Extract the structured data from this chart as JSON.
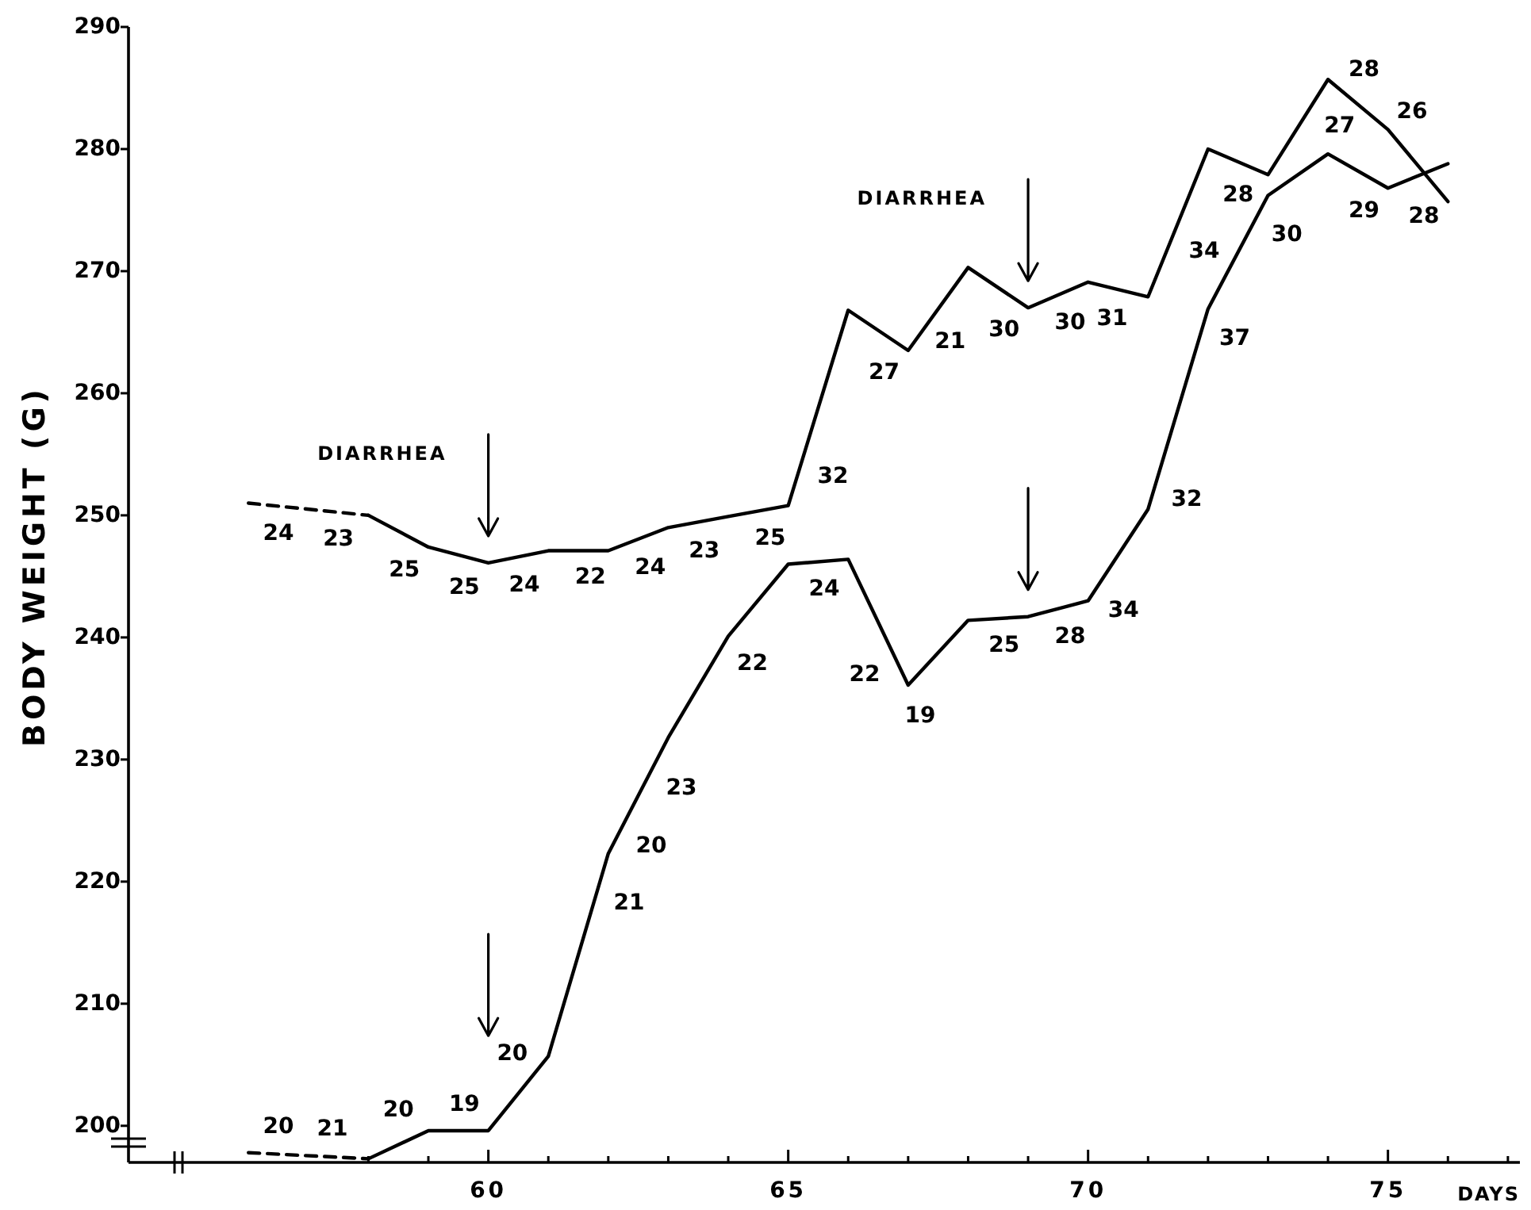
{
  "chart_data": {
    "type": "line",
    "ylabel": "BODY WEIGHT (G)",
    "xlabel": "DAYS",
    "xlim": [
      54,
      77.2
    ],
    "xticks": [
      {
        "value": 58,
        "label": null
      },
      {
        "value": 59,
        "label": null
      },
      60,
      {
        "value": 61,
        "label": null
      },
      {
        "value": 62,
        "label": null
      },
      {
        "value": 63,
        "label": null
      },
      {
        "value": 64,
        "label": null
      },
      65,
      {
        "value": 66,
        "label": null
      },
      {
        "value": 67,
        "label": null
      },
      {
        "value": 68,
        "label": null
      },
      {
        "value": 69,
        "label": null
      },
      70,
      {
        "value": 71,
        "label": null
      },
      {
        "value": 72,
        "label": null
      },
      {
        "value": 73,
        "label": null
      },
      {
        "value": 74,
        "label": null
      },
      75,
      {
        "value": 76,
        "label": null
      },
      {
        "value": 77,
        "label": null
      }
    ],
    "ylim": [
      197,
      290
    ],
    "yticks": [
      200,
      210,
      220,
      230,
      240,
      250,
      260,
      270,
      280,
      290
    ],
    "series": [
      {
        "color": "#000000",
        "line_style": "dashed",
        "x": [
          56,
          58
        ],
        "values": [
          251.0,
          250.0
        ]
      },
      {
        "color": "#000000",
        "line_style": "solid",
        "x": [
          58,
          59,
          60,
          61,
          62,
          63,
          64,
          65,
          66,
          67,
          68,
          69,
          70,
          71,
          72,
          73,
          74,
          75,
          76
        ],
        "values": [
          250.0,
          247.4,
          246.1,
          247.1,
          247.1,
          249.0,
          249.9,
          250.8,
          266.8,
          263.5,
          270.3,
          267.0,
          269.1,
          267.9,
          280.0,
          277.9,
          285.7,
          281.6,
          275.7
        ]
      },
      {
        "color": "#000000",
        "line_style": "dashed",
        "x": [
          56,
          58
        ],
        "values": [
          197.8,
          197.3
        ]
      },
      {
        "color": "#000000",
        "line_style": "solid",
        "x": [
          58,
          59,
          60,
          61,
          62,
          63,
          64,
          65,
          66,
          67,
          68,
          69,
          70,
          71,
          72,
          73,
          74,
          75,
          76
        ],
        "values": [
          197.3,
          199.6,
          199.6,
          205.7,
          222.3,
          231.8,
          240.1,
          246.0,
          246.4,
          236.1,
          241.4,
          241.7,
          243.0,
          250.5,
          266.9,
          276.2,
          279.6,
          276.8,
          278.8
        ]
      }
    ],
    "ref_lines": [
      {
        "axis": "x",
        "value": 60,
        "label": "DIARRHEA"
      },
      {
        "axis": "x",
        "value": 69,
        "label": "DIARRHEA"
      }
    ],
    "annotations": [
      {
        "text": "24",
        "x": 56.5,
        "y": 250.8
      },
      {
        "text": "23",
        "x": 57.5,
        "y": 250.3
      },
      {
        "text": "25",
        "x": 58.6,
        "y": 248.4
      },
      {
        "text": "25",
        "x": 59.6,
        "y": 246.6
      },
      {
        "text": "24",
        "x": 60.6,
        "y": 246.7
      },
      {
        "text": "22",
        "x": 61.7,
        "y": 247.1
      },
      {
        "text": "24",
        "x": 62.7,
        "y": 248.4
      },
      {
        "text": "23",
        "x": 63.6,
        "y": 249.5
      },
      {
        "text": "25",
        "x": 64.7,
        "y": 250.5
      },
      {
        "text": "32",
        "x": 65.2,
        "y": 254.0
      },
      {
        "text": "27",
        "x": 66.6,
        "y": 264.8
      },
      {
        "text": "21",
        "x": 67.7,
        "y": 268.3
      },
      {
        "text": "30",
        "x": 68.6,
        "y": 268.3
      },
      {
        "text": "30",
        "x": 69.7,
        "y": 268.5
      },
      {
        "text": "31",
        "x": 70.4,
        "y": 268.6
      },
      {
        "text": "34",
        "x": 71.4,
        "y": 272.7
      },
      {
        "text": "28",
        "x": 72.5,
        "y": 279.0
      },
      {
        "text": "27",
        "x": 73.7,
        "y": 283.4
      },
      {
        "text": "28",
        "x": 74.6,
        "y": 283.2
      },
      {
        "text": "26",
        "x": 75.4,
        "y": 279.2
      },
      {
        "text": "20",
        "x": 56.5,
        "y": 197.7
      },
      {
        "text": "21",
        "x": 57.4,
        "y": 197.5
      },
      {
        "text": "20",
        "x": 58.5,
        "y": 198.5
      },
      {
        "text": "19",
        "x": 59.6,
        "y": 199.6
      },
      {
        "text": "20",
        "x": 60.4,
        "y": 202.0
      },
      {
        "text": "20",
        "x": 62.2,
        "y": 224.2
      },
      {
        "text": "21",
        "x": 61.8,
        "y": 219.0
      },
      {
        "text": "23",
        "x": 62.7,
        "y": 229.0
      },
      {
        "text": "22",
        "x": 63.9,
        "y": 239.3
      },
      {
        "text": "24",
        "x": 65.6,
        "y": 246.2
      },
      {
        "text": "22",
        "x": 66.8,
        "y": 238.2
      },
      {
        "text": "19",
        "x": 67.2,
        "y": 237.2
      },
      {
        "text": "25",
        "x": 68.6,
        "y": 241.6
      },
      {
        "text": "28",
        "x": 69.7,
        "y": 242.6
      },
      {
        "text": "34",
        "x": 70.1,
        "y": 243.8
      },
      {
        "text": "32",
        "x": 71.1,
        "y": 252.1
      },
      {
        "text": "37",
        "x": 71.9,
        "y": 265.3
      },
      {
        "text": "30",
        "x": 72.8,
        "y": 274.3
      },
      {
        "text": "29",
        "x": 74.6,
        "y": 277.9
      },
      {
        "text": "28",
        "x": 75.6,
        "y": 278.0
      }
    ]
  }
}
